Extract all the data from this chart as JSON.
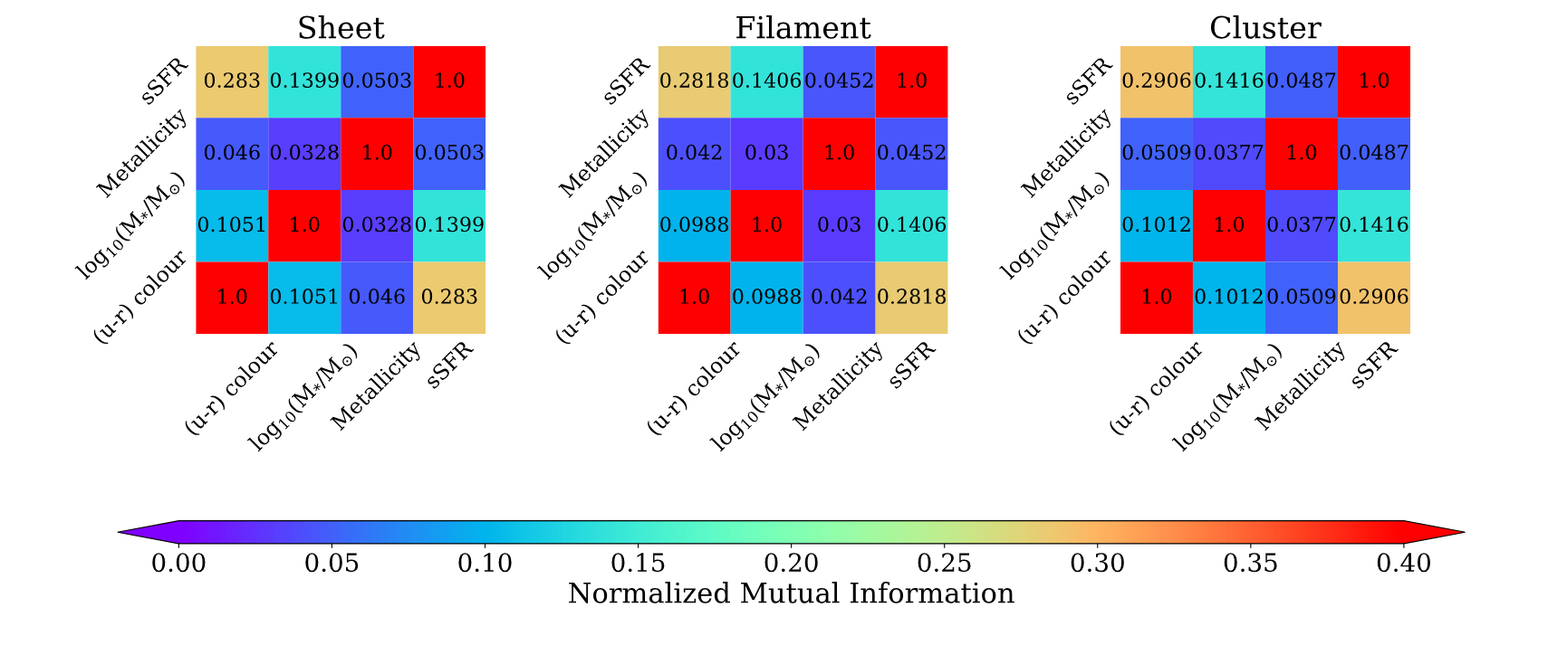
{
  "chart_data": [
    {
      "type": "heatmap",
      "title": "Sheet",
      "categories": [
        "(u-r) colour",
        "log$_{10}$(M$_{*}$/M$_{⊙}$)",
        "Metallicity",
        "sSFR"
      ],
      "y_categories": [
        "sSFR",
        "Metallicity",
        "log$_{10}$(M$_{*}$/M$_{⊙}$)",
        "(u-r) colour"
      ],
      "cells": [
        [
          0.283,
          0.1399,
          0.0503,
          1.0
        ],
        [
          0.046,
          0.0328,
          1.0,
          0.0503
        ],
        [
          0.1051,
          1.0,
          0.0328,
          0.1399
        ],
        [
          1.0,
          0.1051,
          0.046,
          0.283
        ]
      ],
      "cell_labels": [
        [
          "0.283",
          "0.1399",
          "0.0503",
          "1.0"
        ],
        [
          "0.046",
          "0.0328",
          "1.0",
          "0.0503"
        ],
        [
          "0.1051",
          "1.0",
          "0.0328",
          "0.1399"
        ],
        [
          "1.0",
          "0.1051",
          "0.046",
          "0.283"
        ]
      ],
      "data_labels": true,
      "clim": [
        0,
        0.4
      ],
      "clabel": "Normalized Mutual Information",
      "cticks": [
        {
          "value": 0,
          "label": "0.00"
        },
        {
          "value": 0.05,
          "label": "0.05"
        },
        {
          "value": 0.1,
          "label": "0.10"
        },
        {
          "value": 0.15,
          "label": "0.15"
        },
        {
          "value": 0.2,
          "label": "0.20"
        },
        {
          "value": 0.25,
          "label": "0.25"
        },
        {
          "value": 0.3,
          "label": "0.30"
        },
        {
          "value": 0.35,
          "label": "0.35"
        },
        {
          "value": 0.4,
          "label": "0.40"
        }
      ]
    },
    {
      "type": "heatmap",
      "title": "Filament",
      "categories": [
        "(u-r) colour",
        "log$_{10}$(M$_{*}$/M$_{⊙}$)",
        "Metallicity",
        "sSFR"
      ],
      "y_categories": [
        "sSFR",
        "Metallicity",
        "log$_{10}$(M$_{*}$/M$_{⊙}$)",
        "(u-r) colour"
      ],
      "cells": [
        [
          0.2818,
          0.1406,
          0.0452,
          1.0
        ],
        [
          0.042,
          0.03,
          1.0,
          0.0452
        ],
        [
          0.0988,
          1.0,
          0.03,
          0.1406
        ],
        [
          1.0,
          0.0988,
          0.042,
          0.2818
        ]
      ],
      "cell_labels": [
        [
          "0.2818",
          "0.1406",
          "0.0452",
          "1.0"
        ],
        [
          "0.042",
          "0.03",
          "1.0",
          "0.0452"
        ],
        [
          "0.0988",
          "1.0",
          "0.03",
          "0.1406"
        ],
        [
          "1.0",
          "0.0988",
          "0.042",
          "0.2818"
        ]
      ],
      "data_labels": true
    },
    {
      "type": "heatmap",
      "title": "Cluster",
      "categories": [
        "(u-r) colour",
        "log$_{10}$(M$_{*}$/M$_{⊙}$)",
        "Metallicity",
        "sSFR"
      ],
      "y_categories": [
        "sSFR",
        "Metallicity",
        "log$_{10}$(M$_{*}$/M$_{⊙}$)",
        "(u-r) colour"
      ],
      "cells": [
        [
          0.2906,
          0.1416,
          0.0487,
          1.0
        ],
        [
          0.0509,
          0.0377,
          1.0,
          0.0487
        ],
        [
          0.1012,
          1.0,
          0.0377,
          0.1416
        ],
        [
          1.0,
          0.1012,
          0.0509,
          0.2906
        ]
      ],
      "cell_labels": [
        [
          "0.2906",
          "0.1416",
          "0.0487",
          "1.0"
        ],
        [
          "0.0509",
          "0.0377",
          "1.0",
          "0.0487"
        ],
        [
          "0.1012",
          "1.0",
          "0.0377",
          "0.1416"
        ],
        [
          "1.0",
          "0.1012",
          "0.0509",
          "0.2906"
        ]
      ],
      "data_labels": true
    }
  ]
}
